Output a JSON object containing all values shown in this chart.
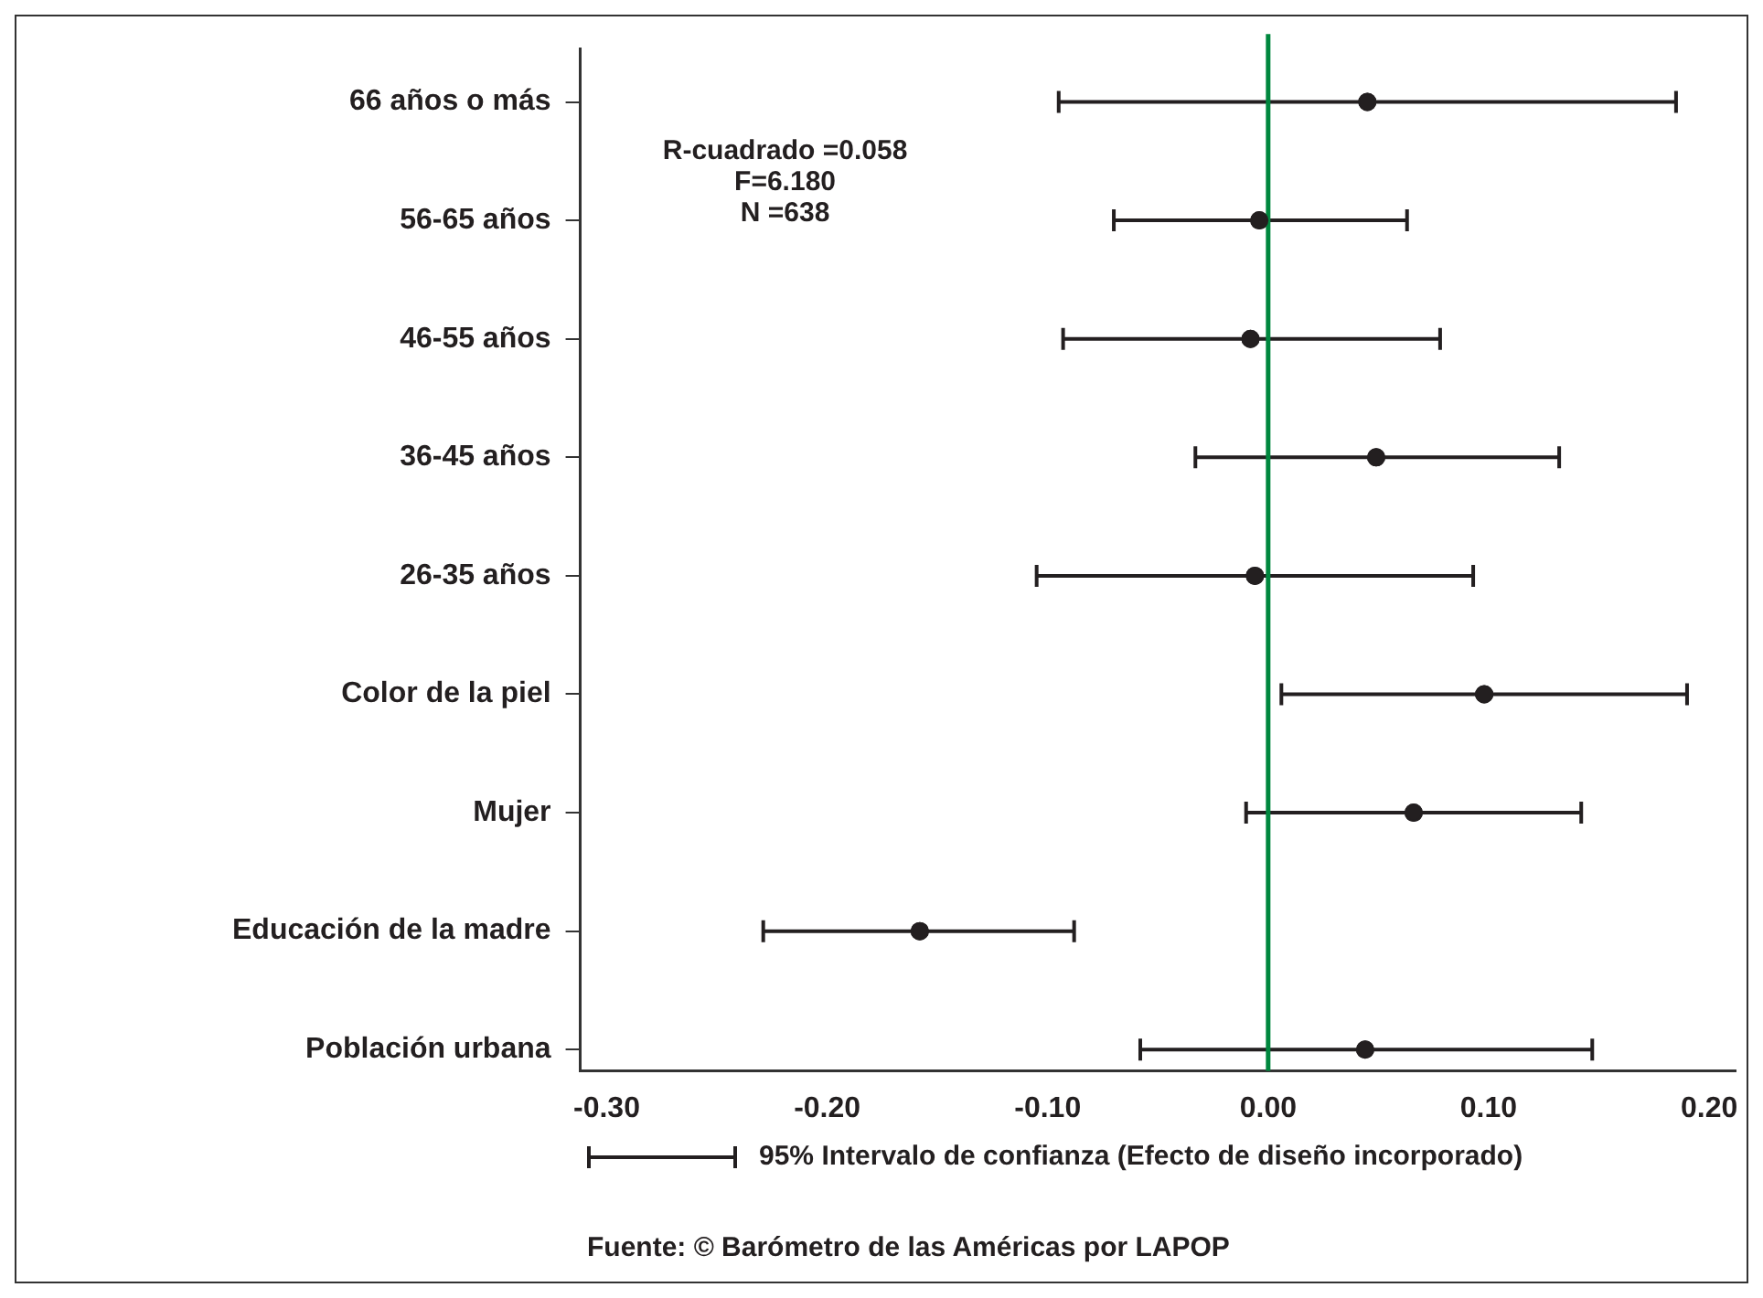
{
  "chart_data": {
    "type": "scatter",
    "orientation": "horizontal",
    "categories": [
      "66 años o más",
      "56-65 años",
      "46-55 años",
      "36-45 años",
      "26-35 años",
      "Color de la piel",
      "Mujer",
      "Educación de la madre",
      "Población urbana"
    ],
    "values": [
      0.045,
      -0.004,
      -0.008,
      0.049,
      -0.006,
      0.098,
      0.066,
      -0.158,
      0.044
    ],
    "errors": [
      [
        -0.095,
        0.185
      ],
      [
        -0.07,
        0.063
      ],
      [
        -0.093,
        0.078
      ],
      [
        -0.033,
        0.132
      ],
      [
        -0.105,
        0.093
      ],
      [
        0.006,
        0.19
      ],
      [
        -0.01,
        0.142
      ],
      [
        -0.229,
        -0.088
      ],
      [
        -0.058,
        0.147
      ]
    ],
    "color": "#231f20",
    "marker": "circle",
    "grid": false,
    "xlim": [
      -0.312,
      0.212
    ],
    "xticks": [
      {
        "value": -0.3,
        "label": "-0.30"
      },
      {
        "value": -0.2,
        "label": "-0.20"
      },
      {
        "value": -0.1,
        "label": "-0.10"
      },
      {
        "value": 0,
        "label": "0.00"
      },
      {
        "value": 0.1,
        "label": "0.10"
      },
      {
        "value": 0.2,
        "label": "0.20"
      }
    ],
    "ref_lines": [
      {
        "axis": "x",
        "value": 0,
        "color": "#00873e"
      }
    ],
    "annotations": [
      "R-cuadrado =0.058\nF=6.180\nN =638",
      "95% Intervalo de confianza (Efecto de diseño incorporado)",
      "Fuente: © Barómetro de las Américas por LAPOP"
    ]
  }
}
